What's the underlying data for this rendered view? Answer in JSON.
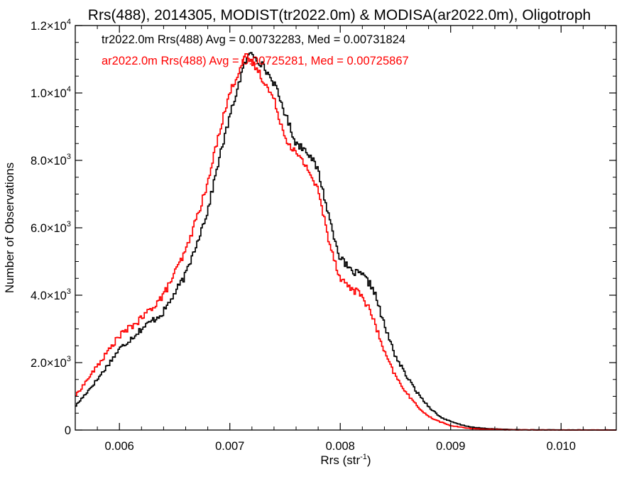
{
  "chart_data": {
    "type": "line",
    "style": "histogram-step",
    "title": "Rrs(488), 2014305, MODIST(tr2022.0m) & MODISA(ar2022.0m), Oligotroph",
    "xlabel": "Rrs (str",
    "xlabel_sup": "-1",
    "xlabel_close": ")",
    "ylabel": "Number of Observations",
    "xlim": [
      0.0056,
      0.0105
    ],
    "ylim": [
      0,
      12000
    ],
    "grid": false,
    "x_ticks": [
      {
        "value": 0.006,
        "label": "0.006"
      },
      {
        "value": 0.007,
        "label": "0.007"
      },
      {
        "value": 0.008,
        "label": "0.008"
      },
      {
        "value": 0.009,
        "label": "0.009"
      },
      {
        "value": 0.01,
        "label": "0.010"
      }
    ],
    "y_ticks": [
      {
        "value": 0,
        "mant": "0",
        "exp": ""
      },
      {
        "value": 2000,
        "mant": "2.0×10",
        "exp": "3"
      },
      {
        "value": 4000,
        "mant": "4.0×10",
        "exp": "3"
      },
      {
        "value": 6000,
        "mant": "6.0×10",
        "exp": "3"
      },
      {
        "value": 8000,
        "mant": "8.0×10",
        "exp": "3"
      },
      {
        "value": 10000,
        "mant": "1.0×10",
        "exp": "4"
      },
      {
        "value": 12000,
        "mant": "1.2×10",
        "exp": "4"
      }
    ],
    "annotations": [
      {
        "text": "tr2022.0m Rrs(488) Avg = 0.00732283, Med = 0.00731824",
        "color": "#000000"
      },
      {
        "text": "ar2022.0m Rrs(488) Avg = 0.00725281, Med = 0.00725867",
        "color": "#ff0000"
      }
    ],
    "series": [
      {
        "color": "#000000",
        "x": [
          0.0056,
          0.0058,
          0.006,
          0.0062,
          0.0064,
          0.0066,
          0.0068,
          0.0069,
          0.007,
          0.0071,
          0.00715,
          0.0072,
          0.00725,
          0.0073,
          0.0074,
          0.0075,
          0.0076,
          0.0077,
          0.0078,
          0.0079,
          0.008,
          0.0081,
          0.0082,
          0.0083,
          0.0084,
          0.0085,
          0.0086,
          0.0087,
          0.0088,
          0.0089,
          0.009,
          0.0091,
          0.0092,
          0.0093,
          0.0094,
          0.0095,
          0.0096,
          0.0098,
          0.01,
          0.0102,
          0.0105
        ],
        "y": [
          700,
          1500,
          2400,
          3000,
          3500,
          4600,
          6500,
          8000,
          9300,
          10500,
          11000,
          11200,
          11000,
          10800,
          10300,
          9400,
          8500,
          8300,
          7700,
          6300,
          5100,
          4700,
          4600,
          4200,
          3100,
          2200,
          1600,
          1100,
          700,
          400,
          250,
          150,
          80,
          50,
          30,
          20,
          10,
          5,
          3,
          1,
          0
        ]
      },
      {
        "color": "#ff0000",
        "x": [
          0.0056,
          0.0058,
          0.006,
          0.0062,
          0.0064,
          0.0066,
          0.0068,
          0.0069,
          0.007,
          0.0071,
          0.00715,
          0.0072,
          0.00725,
          0.0073,
          0.0074,
          0.0075,
          0.0076,
          0.0077,
          0.0078,
          0.0079,
          0.008,
          0.0081,
          0.0082,
          0.0083,
          0.0084,
          0.0085,
          0.0086,
          0.0087,
          0.0088,
          0.0089,
          0.009,
          0.0091,
          0.0092,
          0.0093,
          0.0094,
          0.0095,
          0.0096,
          0.0098,
          0.01,
          0.0102,
          0.0105
        ],
        "y": [
          1000,
          1900,
          2800,
          3300,
          4000,
          5300,
          7300,
          8800,
          10000,
          10800,
          11100,
          10900,
          10700,
          10400,
          9800,
          8700,
          8200,
          7800,
          7100,
          5600,
          4500,
          4200,
          4000,
          3300,
          2300,
          1600,
          1100,
          700,
          400,
          250,
          130,
          80,
          40,
          25,
          15,
          8,
          5,
          3,
          1,
          0,
          0
        ]
      }
    ]
  }
}
